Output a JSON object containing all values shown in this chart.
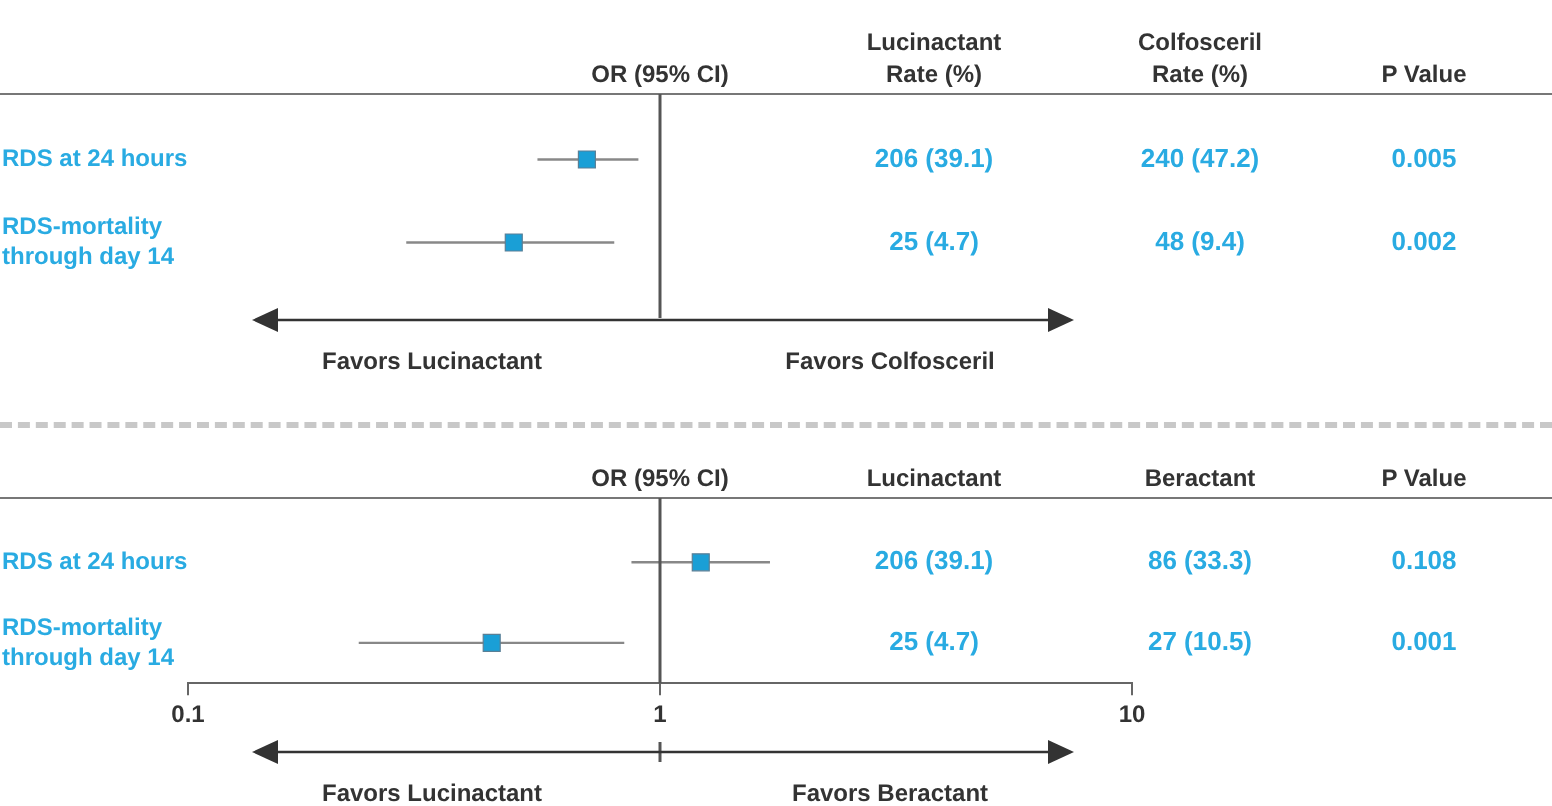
{
  "chart_data": [
    {
      "type": "scatter",
      "orientation": "horizontal",
      "categories": [
        "RDS at 24 hours",
        "RDS-mortality through day 14"
      ],
      "values": [
        0.7,
        0.49
      ],
      "errors": [
        [
          0.55,
          0.9
        ],
        [
          0.29,
          0.8
        ]
      ],
      "color": "#1a9fd6",
      "marker": "square",
      "xlabel": "OR (95% CI)",
      "xlim": [
        0.1,
        10
      ],
      "xticks": [
        0.1,
        1,
        10
      ],
      "log": "x",
      "tick_labels": "y",
      "ref_lines": [
        {
          "axis": "x",
          "value": 1
        }
      ],
      "annotations": [
        "Lucinactant Rate (%)",
        "Colfosceril Rate (%)",
        "P Value",
        "206 (39.1)",
        "240 (47.2)",
        "0.005",
        "25 (4.7)",
        "48 (9.4)",
        "0.002",
        "Favors Lucinactant",
        "Favors Colfosceril"
      ]
    },
    {
      "type": "scatter",
      "orientation": "horizontal",
      "categories": [
        "RDS at 24 hours",
        "RDS-mortality through day 14"
      ],
      "values": [
        1.22,
        0.44
      ],
      "errors": [
        [
          0.87,
          1.71
        ],
        [
          0.23,
          0.84
        ]
      ],
      "color": "#1a9fd6",
      "marker": "square",
      "xlabel": "OR (95% CI)",
      "xlim": [
        0.1,
        10
      ],
      "xticks": [
        0.1,
        1,
        10
      ],
      "log": "x",
      "ref_lines": [
        {
          "axis": "x",
          "value": 1
        }
      ],
      "annotations": [
        "Lucinactant",
        "Beractant",
        "P Value",
        "206 (39.1)",
        "86 (33.3)",
        "0.108",
        "25 (4.7)",
        "27 (10.5)",
        "0.001",
        "Favors Lucinactant",
        "Favors Beractant"
      ]
    }
  ]
}
